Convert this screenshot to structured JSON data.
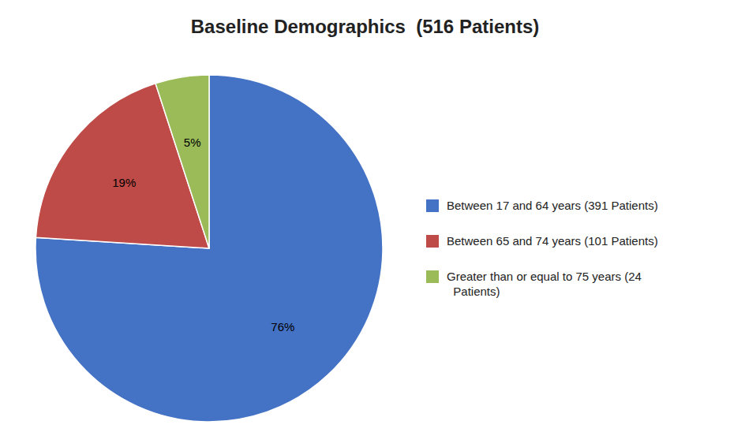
{
  "chart_data": {
    "type": "pie",
    "title": "Baseline Demographics  (516 Patients)",
    "categories": [
      "Between 17 and 64 years (391 Patients)",
      "Between 65 and 74 years (101 Patients)",
      "Greater than or equal to 75 years (24\n  Patients)"
    ],
    "values": [
      76,
      19,
      5
    ],
    "value_labels": [
      "76%",
      "19%",
      "5%"
    ],
    "colors": [
      "#4472C4",
      "#BE4B48",
      "#9BBB59"
    ],
    "data_labels": true,
    "legend": "right"
  }
}
